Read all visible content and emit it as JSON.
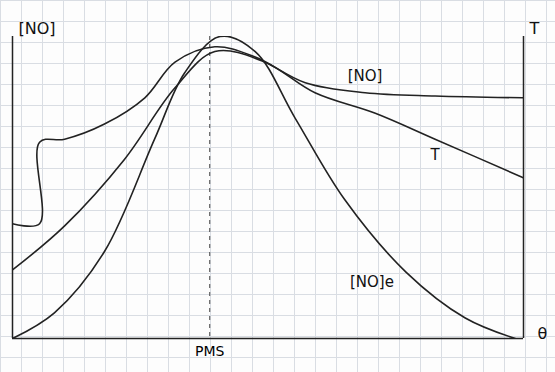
{
  "chart_data": {
    "type": "line",
    "xlabel": "θ",
    "ylabel": "[NO]",
    "y2label": "T",
    "xlim": [
      0,
      100
    ],
    "ylim": [
      0,
      100
    ],
    "y2lim": [
      0,
      100
    ],
    "xticks": [
      {
        "value": 38.6,
        "label": "PMS"
      }
    ],
    "yticks": [],
    "y2ticks": [],
    "grid": true,
    "tick_labels": "x",
    "series": [
      {
        "name": "[NO]e",
        "color": "#222222",
        "line_style": "solid",
        "x": [
          0,
          8.2,
          18,
          27.8,
          33.7,
          40.6,
          47.5,
          55.3,
          65,
          77,
          88.6,
          98.4
        ],
        "values": [
          0,
          8.5,
          28.8,
          66,
          88,
          100,
          95,
          73,
          46,
          22,
          6.8,
          0
        ]
      },
      {
        "name": "T",
        "color": "#222222",
        "line_style": "solid",
        "axis": "y2",
        "x": [
          0,
          10.2,
          21.9,
          31.8,
          39.6,
          49.4,
          59.2,
          71,
          82.7,
          100
        ],
        "values": [
          22.7,
          37.3,
          59.3,
          83,
          95,
          91.5,
          81.4,
          74.6,
          66,
          53.2
        ]
      },
      {
        "name": "[NO]",
        "color": "#222222",
        "line_style": "solid",
        "x": [
          0,
          5.3,
          5.3,
          10.2,
          18,
          25.9,
          31.8,
          39.6,
          47.5,
          57.3,
          69,
          82.7,
          100
        ],
        "values": [
          38,
          38,
          65,
          66,
          71,
          79.7,
          91.5,
          96.6,
          93.2,
          84.7,
          81.4,
          80.3,
          79.7
        ]
      }
    ]
  }
}
